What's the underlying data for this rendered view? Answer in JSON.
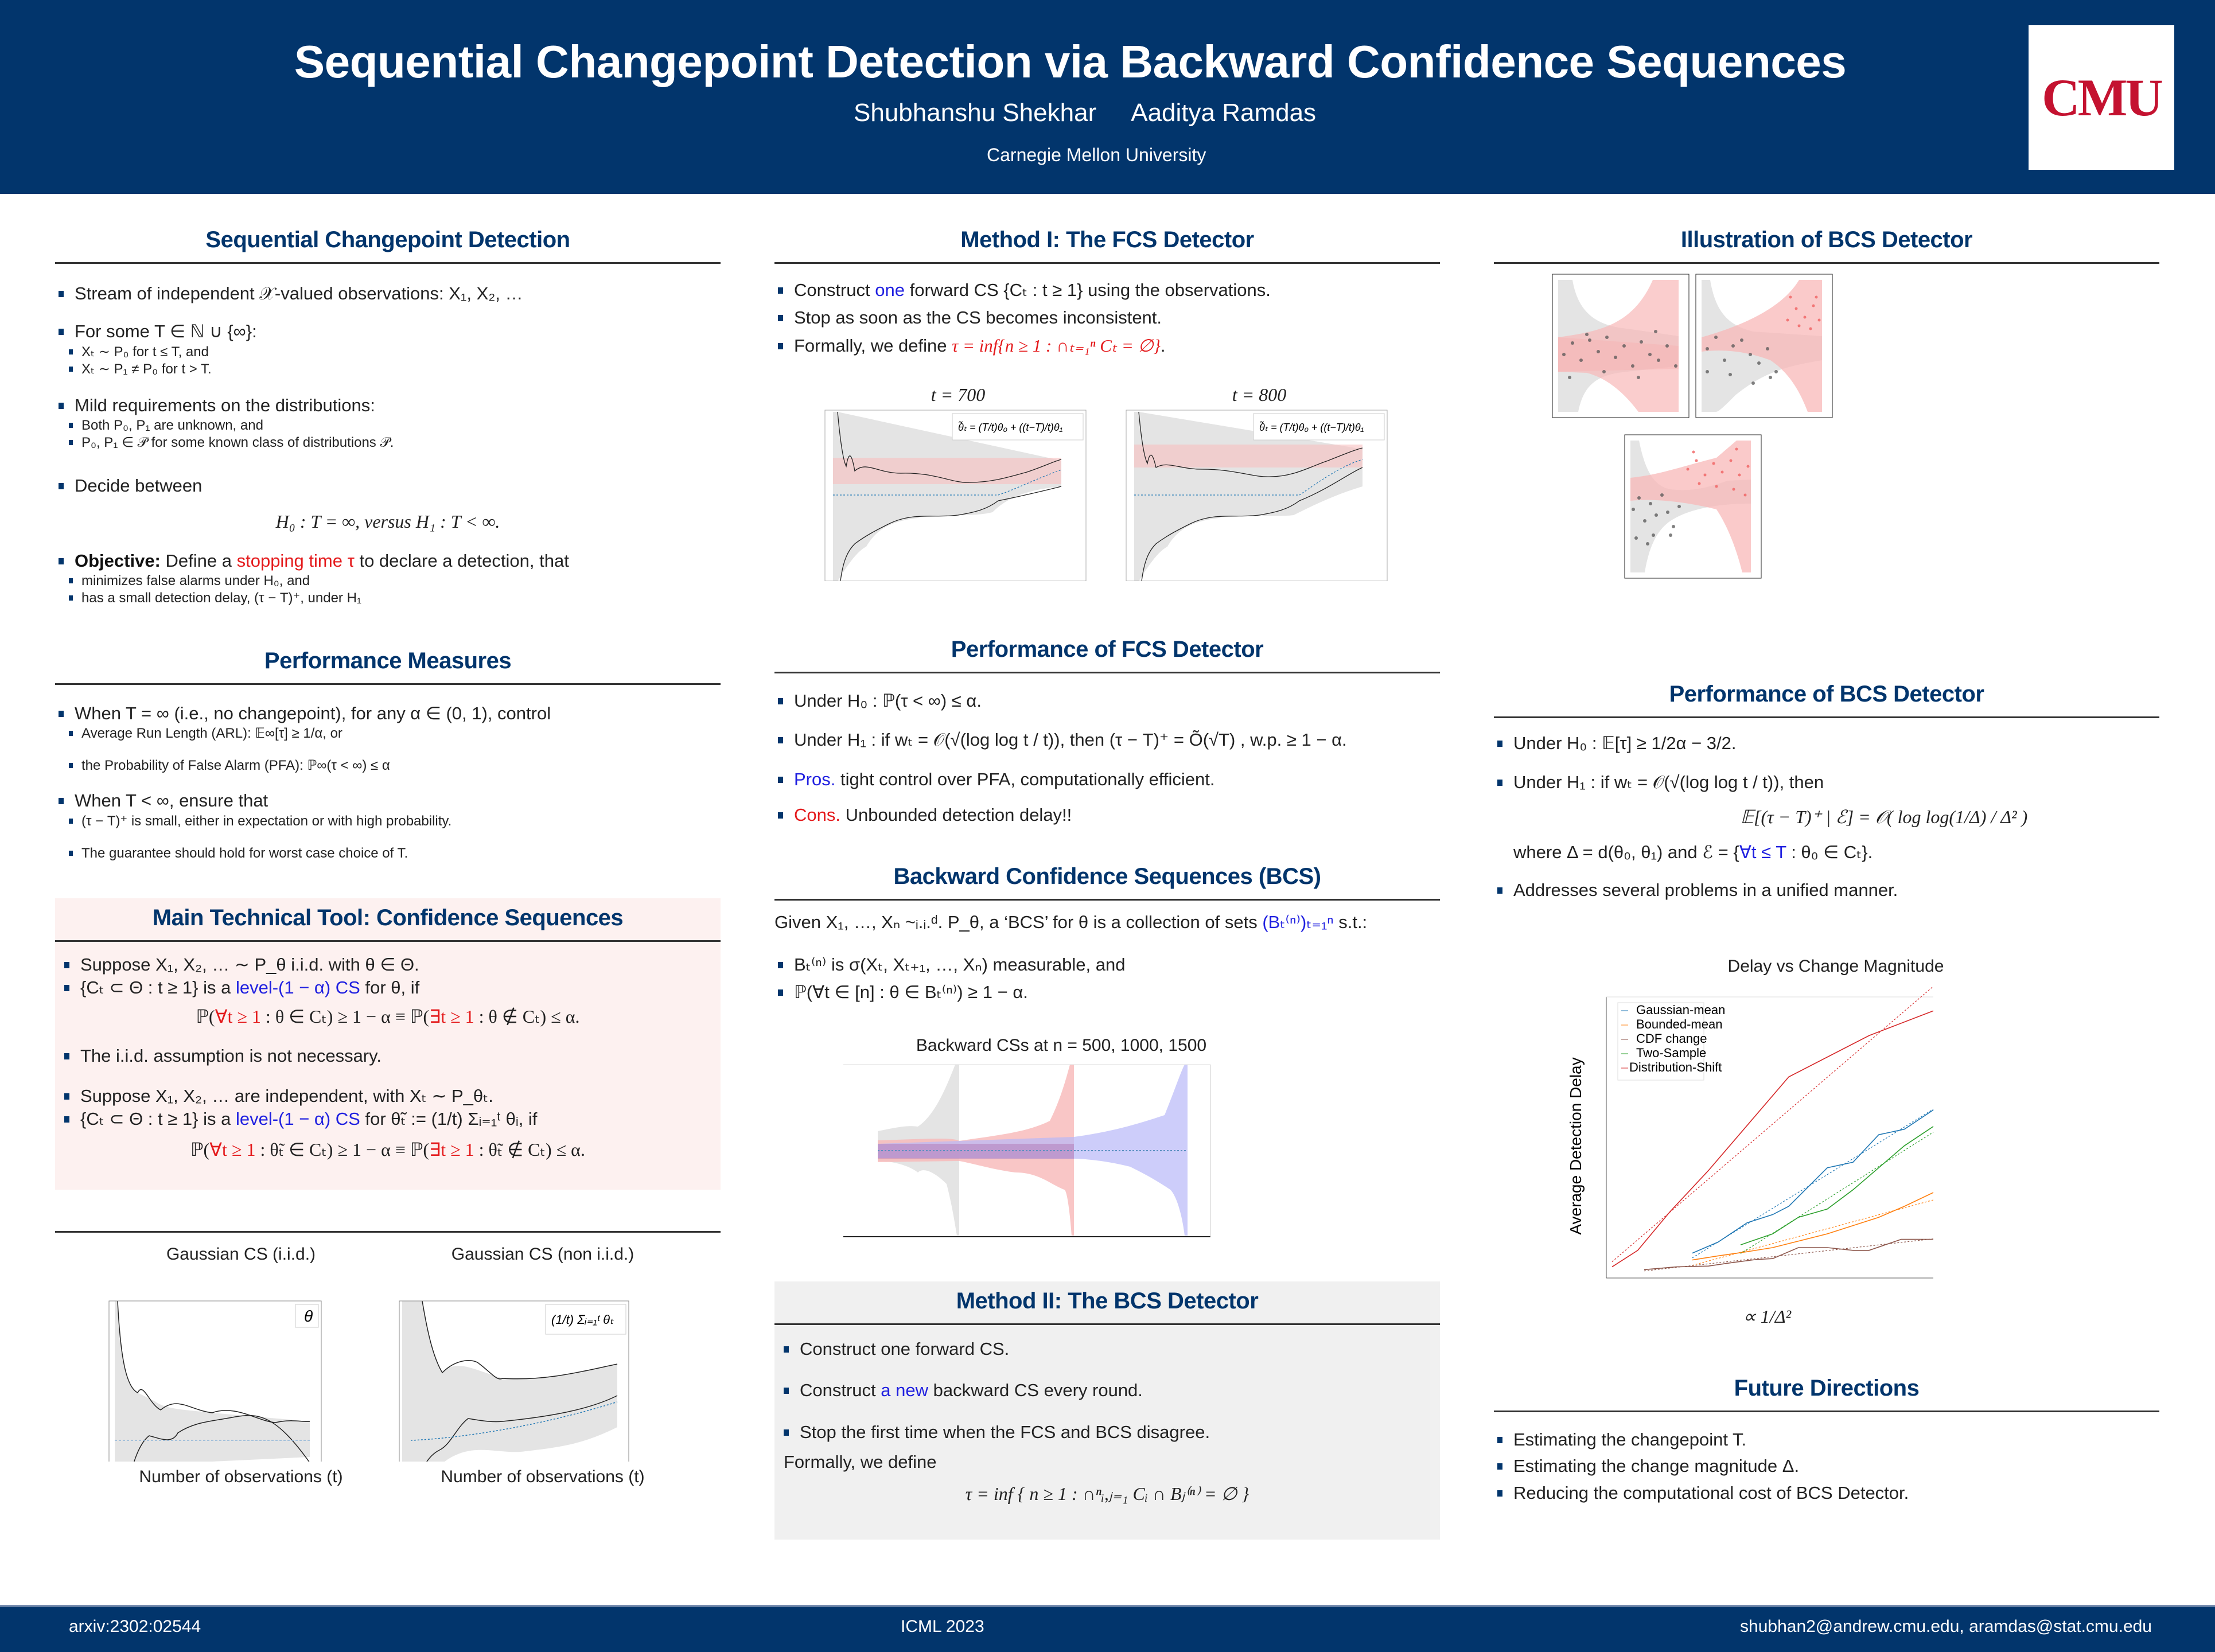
{
  "header": {
    "title": "Sequential Changepoint Detection via Backward Confidence Sequences",
    "authors": [
      "Shubhanshu Shekhar",
      "Aaditya Ramdas"
    ],
    "affiliation": "Carnegie Mellon University",
    "logo_text": "CMU",
    "colors": {
      "banner": "#02356c",
      "logo": "#c41230"
    }
  },
  "footer": {
    "left": "arxiv:2302:02544",
    "center": "ICML 2023",
    "right": "shubhan2@andrew.cmu.edu,   aramdas@stat.cmu.edu"
  },
  "col1": {
    "s1": {
      "title": "Sequential Changepoint Detection",
      "b1": "Stream of independent 𝒳-valued observations: X₁, X₂, …",
      "b2": "For some T ∈ ℕ ∪ {∞}:",
      "b2_sub": [
        "Xₜ ∼ P₀ for t ≤ T, and",
        "Xₜ ∼ P₁ ≠ P₀ for t > T."
      ],
      "b3": "Mild requirements on the distributions:",
      "b3_sub": [
        "Both P₀, P₁ are unknown, and",
        "P₀, P₁ ∈ 𝒫 for some known class of distributions 𝒫."
      ],
      "b4": "Decide between",
      "b4_eq": "H₀ : T = ∞,     versus     H₁ : T < ∞.",
      "b5_bold": "Objective:",
      "b5_pre": " Define a ",
      "b5_red": "stopping time τ",
      "b5_post": " to declare a detection, that",
      "b5_sub": [
        "minimizes false alarms under H₀, and",
        "has a small detection delay, (τ − T)⁺, under H₁"
      ]
    },
    "s2": {
      "title": "Performance Measures",
      "b1": "When T = ∞ (i.e., no changepoint), for any α ∈ (0, 1), control",
      "b1_sub": [
        "Average Run Length (ARL): 𝔼∞[τ] ≥ 1/α, or",
        "the Probability of False Alarm (PFA): ℙ∞(τ < ∞) ≤ α"
      ],
      "b2": "When T < ∞, ensure that",
      "b2_sub": [
        "(τ − T)⁺ is small, either in expectation or with high probability.",
        "The guarantee should hold for worst case choice of T."
      ]
    },
    "s3": {
      "title": "Main Technical Tool: Confidence Sequences",
      "b1": "Suppose X₁, X₂, … ∼ P_θ i.i.d. with θ ∈ Θ.",
      "b2_pre": "{Cₜ ⊂ Θ : t ≥ 1} is a ",
      "b2_blue": "level-(1 − α) CS",
      "b2_post": " for θ, if",
      "eq1_a": "ℙ(",
      "eq1_red1": "∀t ≥ 1",
      "eq1_b": " : θ ∈ Cₜ) ≥ 1 − α     ≡     ℙ(",
      "eq1_red2": "∃t ≥ 1",
      "eq1_c": " : θ ∉ Cₜ) ≤ α.",
      "b3": "The i.i.d. assumption is not necessary.",
      "b4": "Suppose X₁, X₂, … are independent, with Xₜ ∼ P_θₜ.",
      "b5_pre": "{Cₜ ⊂ Θ : t ≥ 1} is a ",
      "b5_blue": "level-(1 − α) CS",
      "b5_post": " for θ̃ₜ := (1/t) Σᵢ₌₁ᵗ θᵢ, if",
      "eq2_a": "ℙ(",
      "eq2_red1": "∀t ≥ 1",
      "eq2_b": " : θ̃ₜ ∈ Cₜ) ≥ 1 − α     ≡     ℙ(",
      "eq2_red2": "∃t ≥ 1",
      "eq2_c": " : θ̃ₜ ∉ Cₜ) ≤ α.",
      "bg": "#fdf1f0"
    },
    "plots": {
      "left_title": "Gaussian CS (i.i.d.)",
      "left_legend": "θ",
      "left_xlabel": "Number of observations (t)",
      "right_title": "Gaussian CS (non i.i.d.)",
      "right_legend": "(1/t) Σᵢ₌₁ᵗ θₜ",
      "right_xlabel": "Number of observations (t)"
    }
  },
  "col2": {
    "s1": {
      "title": "Method I: The FCS Detector",
      "b1_pre": "Construct ",
      "b1_blue": "one",
      "b1_post": " forward CS {Cₜ : t ≥ 1} using the observations.",
      "b2": "Stop as soon as the CS becomes inconsistent.",
      "b3_pre": "Formally, we define ",
      "b3_red": "τ = inf{n ≥ 1 : ∩ₜ₌₁ⁿ Cₜ = ∅}",
      "b3_post": ".",
      "plot_left_title": "t = 700",
      "plot_right_title": "t = 800",
      "plot_legend": "θ̃ₜ = (T/t)θ₀ + ((t−T)/t)θ₁"
    },
    "s2": {
      "title": "Performance of FCS Detector",
      "b1": "Under H₀ :  ℙ(τ < ∞) ≤ α.",
      "b2": "Under H₁ : if wₜ = 𝒪(√(log log t / t)), then (τ − T)⁺ = Õ(√T) ,  w.p.  ≥ 1 − α.",
      "b3_blue": "Pros.",
      "b3_post": " tight control over PFA, computationally efficient.",
      "b4_red": "Cons.",
      "b4_post": " Unbounded detection delay!!"
    },
    "s3": {
      "title": "Backward Confidence Sequences (BCS)",
      "intro_pre": "Given X₁, …, Xₙ ~ᵢ.ᵢ.ᵈ. P_θ, a ‘BCS’ for θ is a collection of sets ",
      "intro_blue": "(Bₜ⁽ⁿ⁾)ₜ₌₁ⁿ",
      "intro_post": " s.t.:",
      "b1": "Bₜ⁽ⁿ⁾ is σ(Xₜ, Xₜ₊₁, …, Xₙ) measurable, and",
      "b2": "ℙ(∀t ∈ [n] : θ ∈ Bₜ⁽ⁿ⁾) ≥ 1 − α.",
      "plot_title": "Backward CSs at n = 500, 1000, 1500"
    },
    "s4": {
      "title": "Method II: The BCS Detector",
      "b1": "Construct one forward CS.",
      "b2_pre": "Construct ",
      "b2_blue": "a new",
      "b2_post": " backward CS every round.",
      "b3": "Stop the first time when the FCS and BCS disagree.",
      "formal": "Formally, we define",
      "eq": "τ = inf { n ≥ 1 : ∩ⁿᵢ,ⱼ₌₁ Cᵢ ∩ Bⱼ⁽ⁿ⁾ = ∅ }",
      "bg": "#f0f0f0"
    }
  },
  "col3": {
    "s1": {
      "title": "Illustration of BCS Detector"
    },
    "s2": {
      "title": "Performance of BCS Detector",
      "b1": "Under H₀ :   𝔼[τ]  ≥  1/2α − 3/2.",
      "b2": "Under H₁ :  if wₜ = 𝒪(√(log log t / t)), then",
      "eq": "𝔼[(τ − T)⁺ | ℰ] = 𝒪( log log(1/Δ) / Δ² )",
      "where_pre": "where Δ = d(θ₀, θ₁) and ℰ = {",
      "where_blue": "∀t ≤ T",
      "where_post": " : θ₀ ∈ Cₜ}.",
      "b3": "Addresses several problems in a unified manner."
    },
    "s3": {
      "title": "Future Directions",
      "items": [
        "Estimating the changepoint T.",
        "Estimating the change magnitude Δ.",
        "Reducing the computational cost of BCS Detector."
      ]
    }
  },
  "chart_data": {
    "type": "line",
    "title": "Delay vs Change Magnitude",
    "xlabel": "∝ 1/Δ²",
    "ylabel": "Average Detection Delay",
    "xlim": [
      0,
      1
    ],
    "ylim": [
      0,
      1
    ],
    "grid": false,
    "legend_position": "top-left",
    "note": "axes have no numeric tick labels; values are normalized estimates (0–1) read from the plot",
    "series": [
      {
        "name": "Gaussian-mean",
        "color": "#1f77b4",
        "x": [
          0.25,
          0.33,
          0.42,
          0.5,
          0.55,
          0.67,
          0.75,
          0.83,
          0.91,
          1.0
        ],
        "y": [
          0.08,
          0.12,
          0.19,
          0.22,
          0.25,
          0.39,
          0.41,
          0.51,
          0.53,
          0.6
        ]
      },
      {
        "name": "Bounded-mean",
        "color": "#ff7f0e",
        "x": [
          0.25,
          0.33,
          0.42,
          0.5,
          0.67,
          0.75,
          0.83,
          0.91,
          1.0
        ],
        "y": [
          0.055,
          0.07,
          0.085,
          0.1,
          0.15,
          0.18,
          0.21,
          0.25,
          0.3
        ]
      },
      {
        "name": "CDF change",
        "color": "#8c564b",
        "x": [
          0.1,
          0.2,
          0.3,
          0.37,
          0.45,
          0.5,
          0.58,
          0.67,
          0.75,
          0.8,
          0.9,
          1.0
        ],
        "y": [
          0.02,
          0.03,
          0.033,
          0.045,
          0.057,
          0.06,
          0.1,
          0.1,
          0.09,
          0.09,
          0.13,
          0.13
        ]
      },
      {
        "name": "Two-Sample",
        "color": "#2ca02c",
        "x": [
          0.4,
          0.5,
          0.58,
          0.67,
          0.75,
          0.83,
          0.91,
          1.0
        ],
        "y": [
          0.11,
          0.15,
          0.21,
          0.24,
          0.31,
          0.39,
          0.47,
          0.54
        ]
      },
      {
        "name": "Distribution-Shift",
        "color": "#d62728",
        "x": [
          0.0,
          0.04,
          0.08,
          0.18,
          0.3,
          0.55,
          0.8,
          1.0
        ],
        "y": [
          0.03,
          0.06,
          0.09,
          0.23,
          0.38,
          0.72,
          0.87,
          0.96
        ]
      }
    ]
  }
}
